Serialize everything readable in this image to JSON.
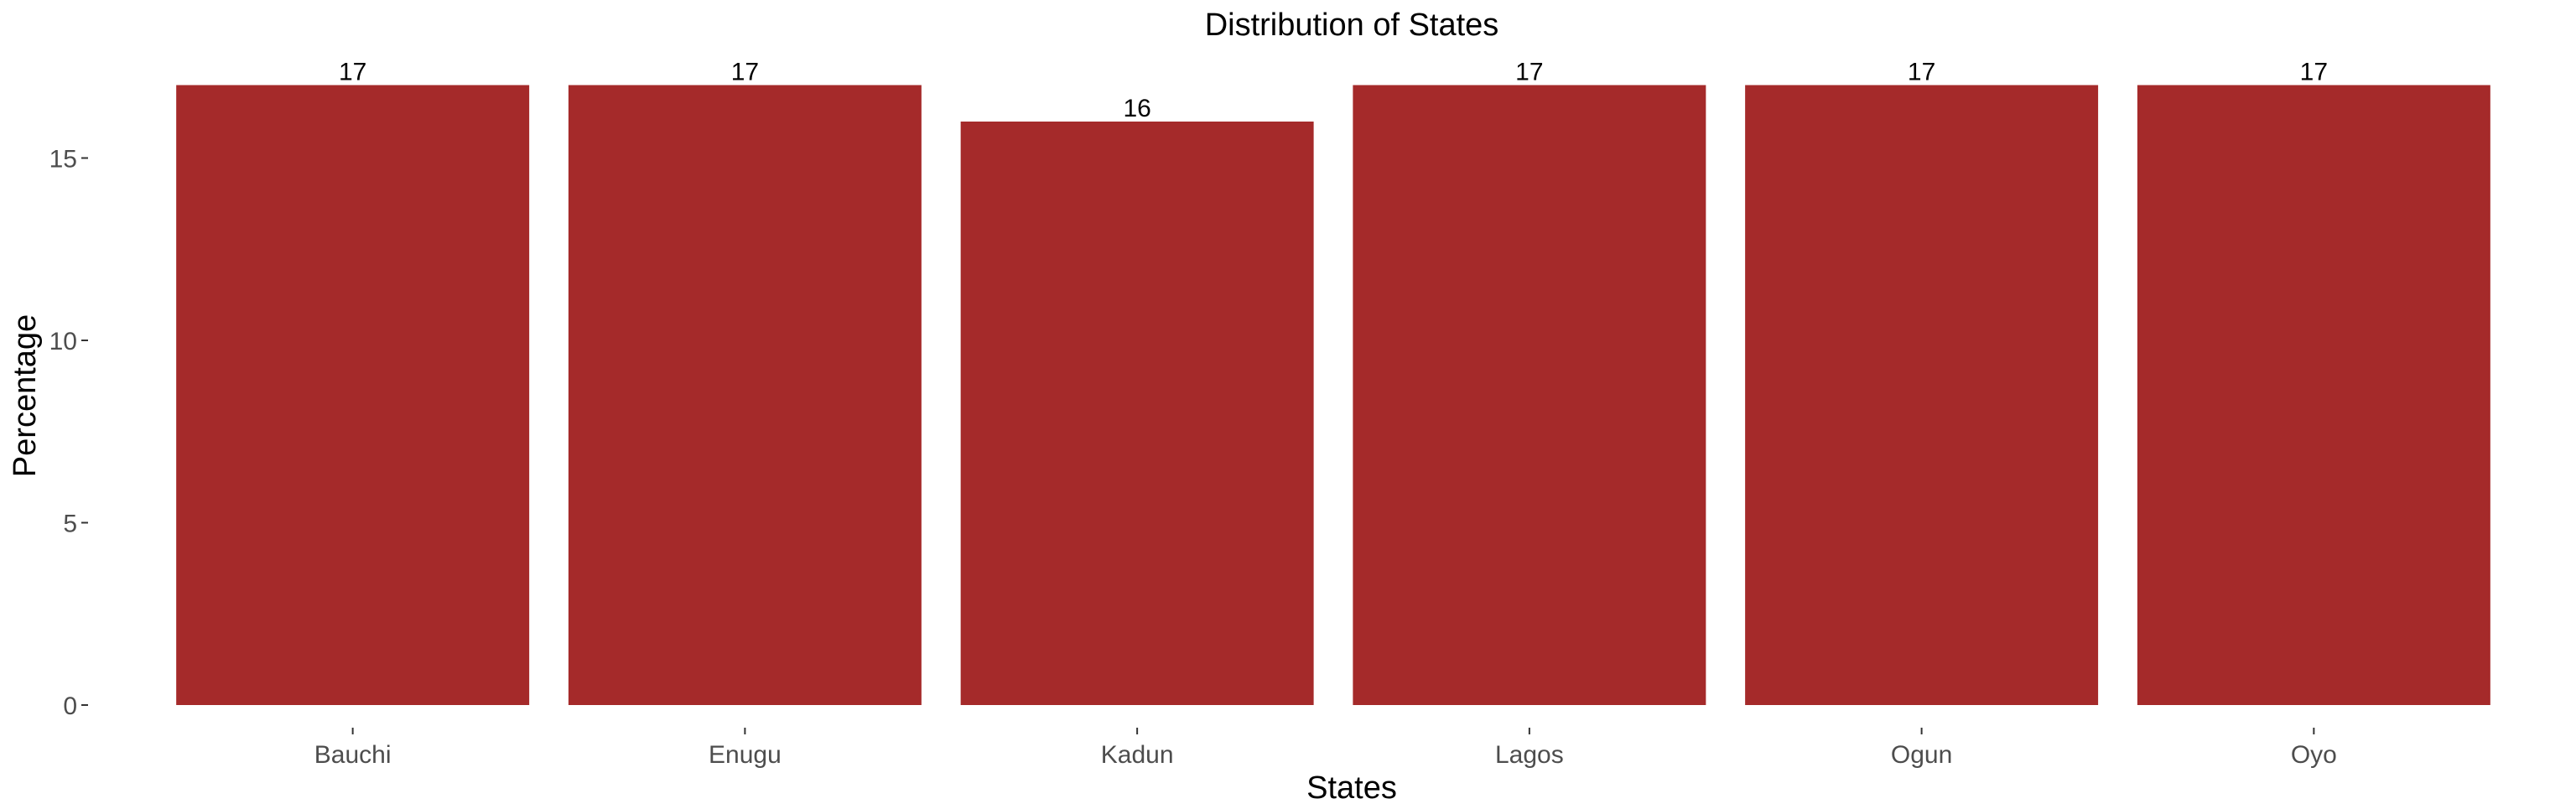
{
  "chart_data": {
    "type": "bar",
    "title": "Distribution of States",
    "xlabel": "States",
    "ylabel": "Percentage",
    "categories": [
      "Bauchi",
      "Enugu",
      "Kadun",
      "Lagos",
      "Ogun",
      "Oyo"
    ],
    "values": [
      17,
      17,
      16,
      17,
      17,
      17
    ],
    "data_labels": [
      "17",
      "17",
      "16",
      "17",
      "17",
      "17"
    ],
    "yticks": [
      0,
      5,
      10,
      15
    ],
    "ytick_labels": [
      "0",
      "5",
      "10",
      "15"
    ],
    "ylim": [
      0,
      17.8
    ],
    "grid": false,
    "legend": "none",
    "colors": {
      "bar": "#a52a2a",
      "text": "#000000",
      "tick_text": "#4d4d4d",
      "tick_mark": "#333333"
    }
  }
}
